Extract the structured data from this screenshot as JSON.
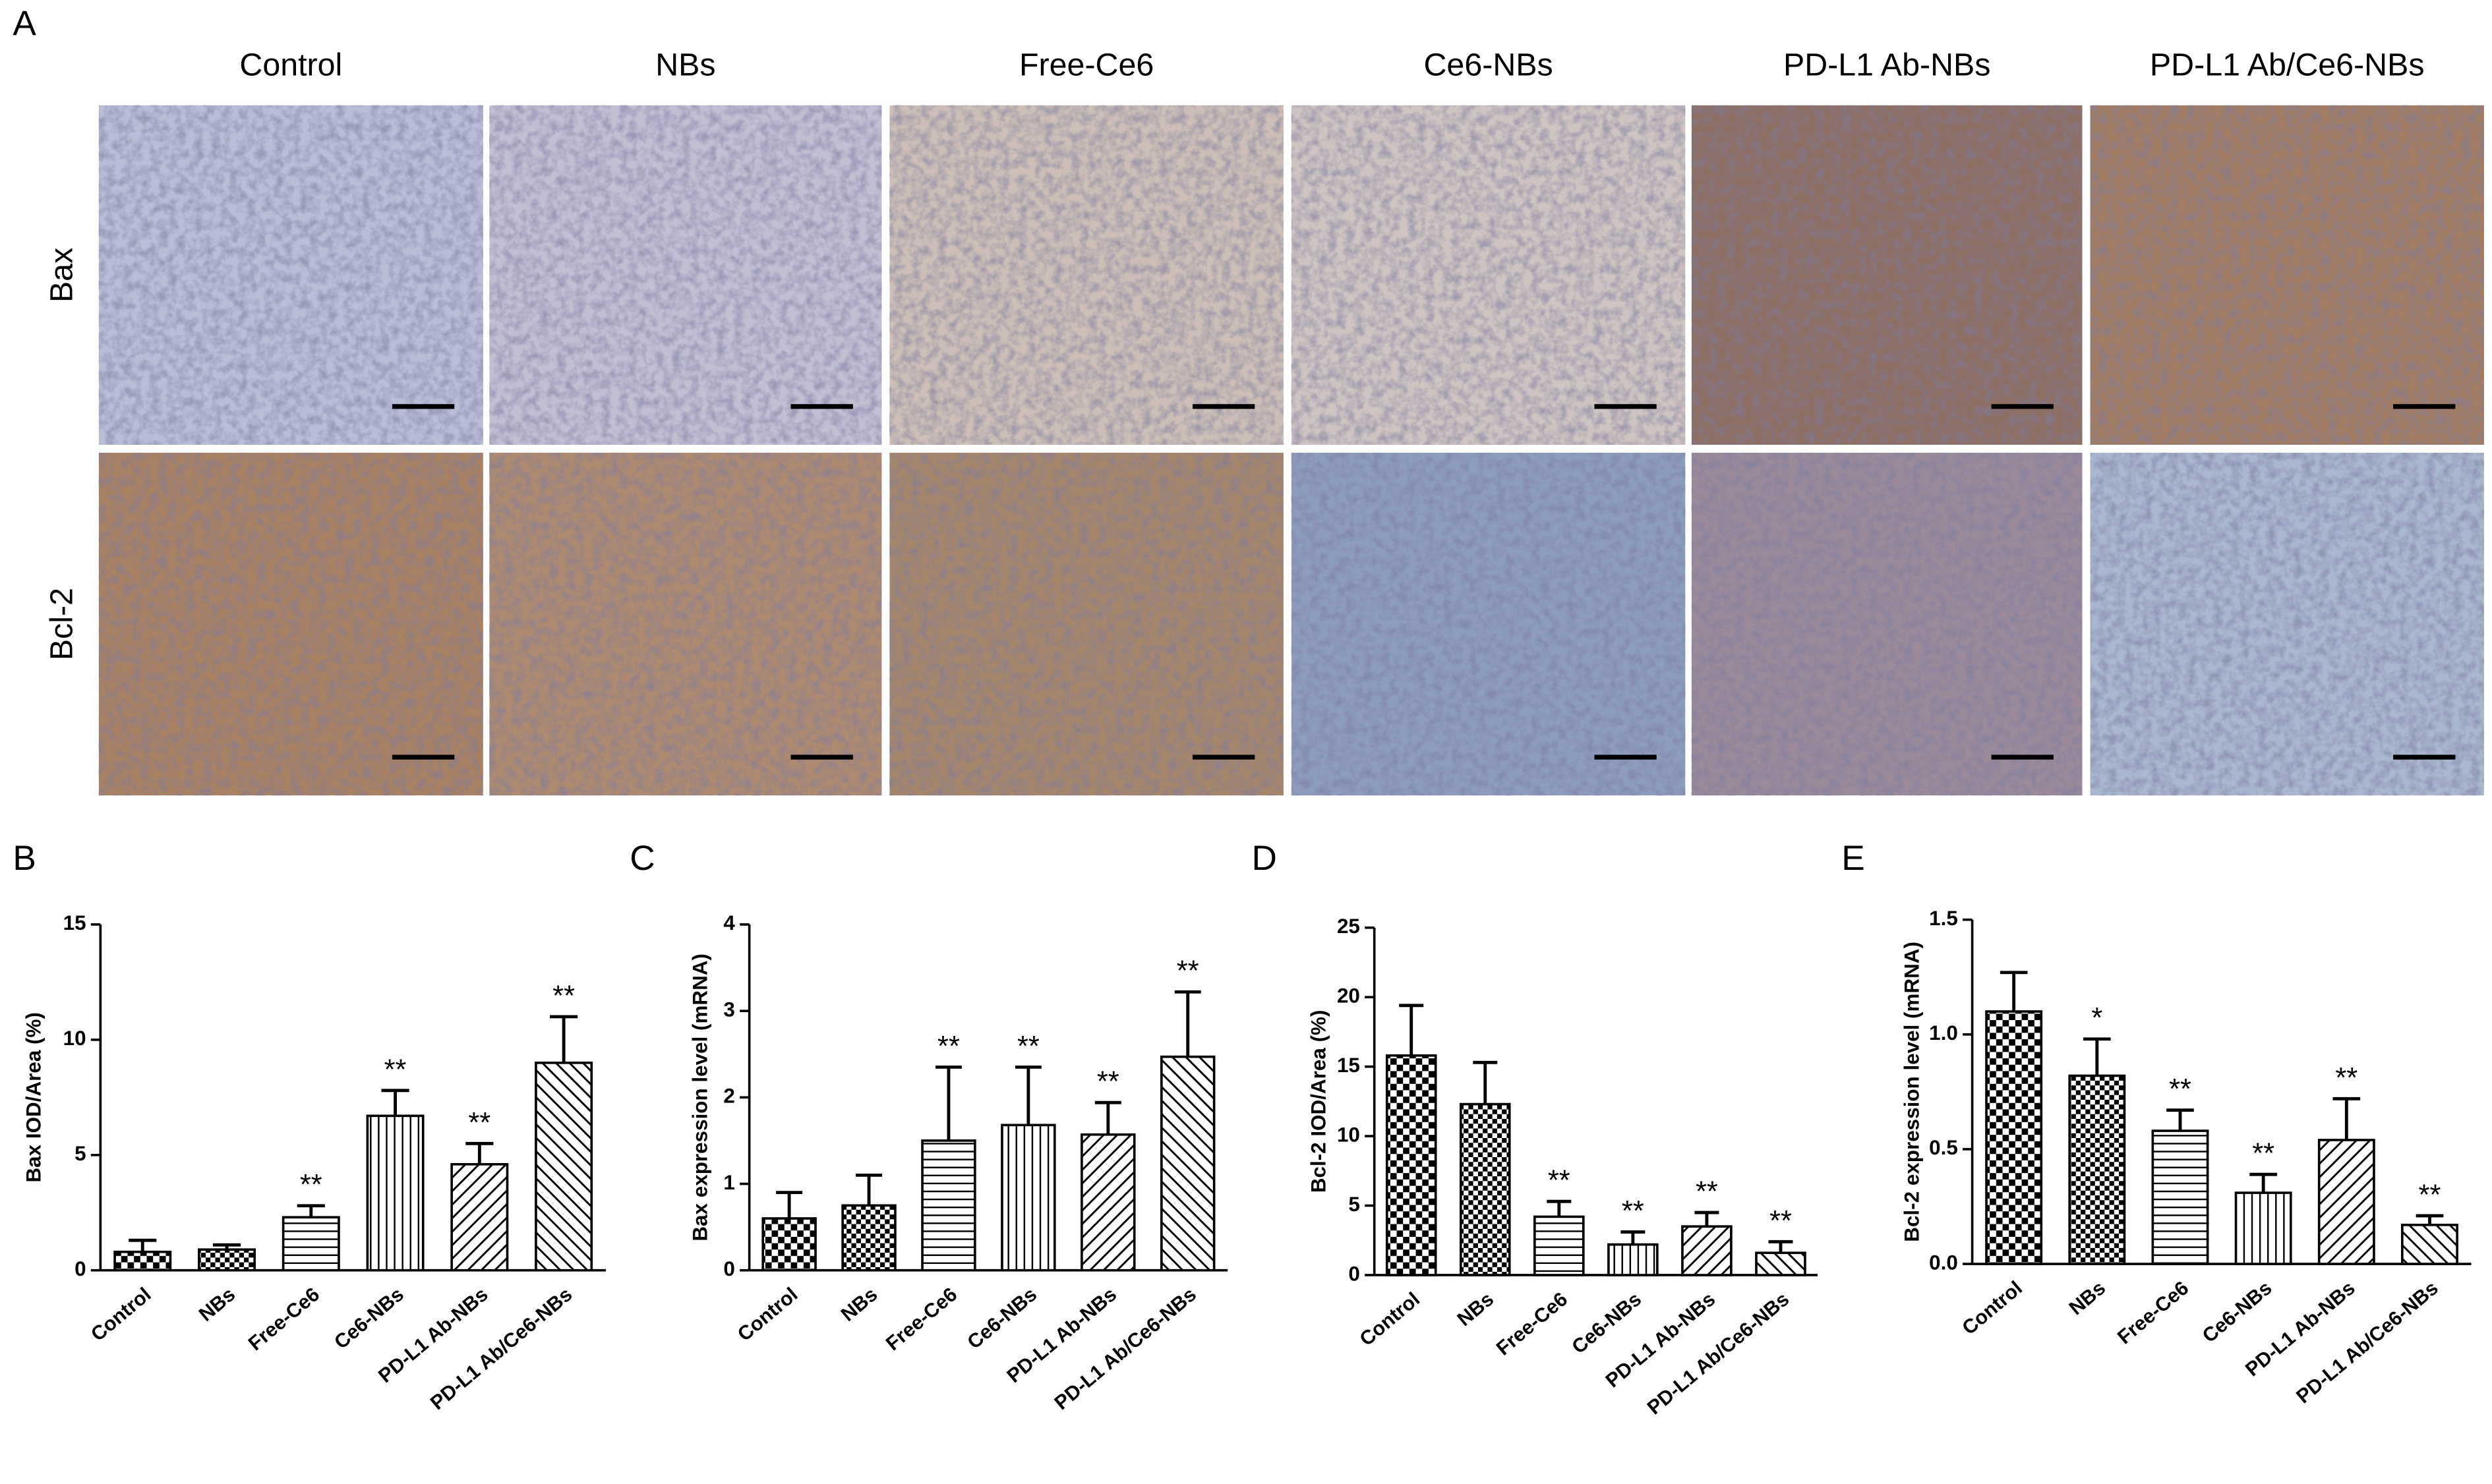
{
  "panel_a": {
    "label": "A",
    "columns": [
      "Control",
      "NBs",
      "Free-Ce6",
      "Ce6-NBs",
      "PD-L1 Ab-NBs",
      "PD-L1 Ab/Ce6-NBs"
    ],
    "rows": [
      "Bax",
      "Bcl-2"
    ]
  },
  "chart_data": [
    {
      "type": "bar",
      "label": "B",
      "y_label": "Bax IOD/Area (%)",
      "categories": [
        "Control",
        "NBs",
        "Free-Ce6",
        "Ce6-NBs",
        "PD-L1 Ab-NBs",
        "PD-L1 Ab/Ce6-NBs"
      ],
      "values": [
        0.8,
        0.9,
        2.3,
        6.7,
        4.6,
        9.0
      ],
      "errors": [
        0.5,
        0.2,
        0.5,
        1.1,
        0.9,
        2.0
      ],
      "color": "#000000",
      "ylim": [
        0,
        15
      ],
      "yticks": [
        0,
        5,
        10,
        15
      ],
      "annotations": [
        {
          "category": "Free-Ce6",
          "text": "**"
        },
        {
          "category": "Ce6-NBs",
          "text": "**"
        },
        {
          "category": "PD-L1 Ab-NBs",
          "text": "**"
        },
        {
          "category": "PD-L1 Ab/Ce6-NBs",
          "text": "**"
        }
      ]
    },
    {
      "type": "bar",
      "label": "C",
      "y_label": "Bax expression level (mRNA)",
      "categories": [
        "Control",
        "NBs",
        "Free-Ce6",
        "Ce6-NBs",
        "PD-L1 Ab-NBs",
        "PD-L1 Ab/Ce6-NBs"
      ],
      "values": [
        0.6,
        0.75,
        1.5,
        1.68,
        1.57,
        2.47
      ],
      "errors": [
        0.3,
        0.35,
        0.85,
        0.67,
        0.37,
        0.75
      ],
      "color": "#000000",
      "ylim": [
        0,
        4
      ],
      "yticks": [
        0,
        1,
        2,
        3,
        4
      ],
      "annotations": [
        {
          "category": "Free-Ce6",
          "text": "**"
        },
        {
          "category": "Ce6-NBs",
          "text": "**"
        },
        {
          "category": "PD-L1 Ab-NBs",
          "text": "**"
        },
        {
          "category": "PD-L1 Ab/Ce6-NBs",
          "text": "**"
        }
      ]
    },
    {
      "type": "bar",
      "label": "D",
      "y_label": "Bcl-2 IOD/Area (%)",
      "categories": [
        "Control",
        "NBs",
        "Free-Ce6",
        "Ce6-NBs",
        "PD-L1 Ab-NBs",
        "PD-L1 Ab/Ce6-NBs"
      ],
      "values": [
        15.8,
        12.3,
        4.2,
        2.2,
        3.5,
        1.6
      ],
      "errors": [
        3.6,
        3.0,
        1.1,
        0.9,
        1.0,
        0.8
      ],
      "color": "#000000",
      "ylim": [
        0,
        25
      ],
      "yticks": [
        0,
        5,
        10,
        15,
        20,
        25
      ],
      "annotations": [
        {
          "category": "Free-Ce6",
          "text": "**"
        },
        {
          "category": "Ce6-NBs",
          "text": "**"
        },
        {
          "category": "PD-L1 Ab-NBs",
          "text": "**"
        },
        {
          "category": "PD-L1 Ab/Ce6-NBs",
          "text": "**"
        }
      ]
    },
    {
      "type": "bar",
      "label": "E",
      "y_label": "Bcl-2 expression level (mRNA)",
      "categories": [
        "Control",
        "NBs",
        "Free-Ce6",
        "Ce6-NBs",
        "PD-L1 Ab-NBs",
        "PD-L1 Ab/Ce6-NBs"
      ],
      "values": [
        1.1,
        0.82,
        0.58,
        0.31,
        0.54,
        0.17
      ],
      "errors": [
        0.17,
        0.16,
        0.09,
        0.08,
        0.18,
        0.04
      ],
      "color": "#000000",
      "ylim": [
        0,
        1.5
      ],
      "yticks": [
        {
          "value": 0,
          "label": "0.0"
        },
        0.5,
        {
          "value": 1,
          "label": "1.0"
        },
        1.5
      ],
      "annotations": [
        {
          "category": "NBs",
          "text": "*"
        },
        {
          "category": "Free-Ce6",
          "text": "**"
        },
        {
          "category": "Ce6-NBs",
          "text": "**"
        },
        {
          "category": "PD-L1 Ab-NBs",
          "text": "**"
        },
        {
          "category": "PD-L1 Ab/Ce6-NBs",
          "text": "**"
        }
      ]
    }
  ]
}
